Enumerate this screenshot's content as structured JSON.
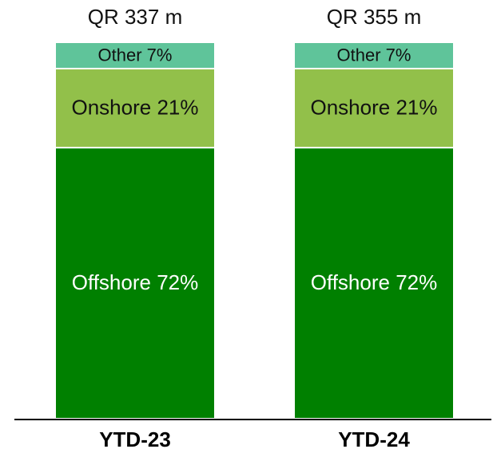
{
  "chart_data": {
    "type": "stacked_bar",
    "categories": [
      "YTD-23",
      "YTD-24"
    ],
    "ylim": [
      0,
      100
    ],
    "totals": {
      "values": [
        337,
        355
      ],
      "value_labels": [
        "QR 337 m",
        "QR 355 m"
      ]
    },
    "series": [
      {
        "name": "Offshore",
        "color": "#008000",
        "label_color": "#ffffff",
        "values": [
          72,
          72
        ],
        "value_labels": [
          "Offshore 72%",
          "Offshore 72%"
        ]
      },
      {
        "name": "Onshore",
        "color": "#92c04a",
        "label_color": "#111111",
        "values": [
          21,
          21
        ],
        "value_labels": [
          "Onshore 21%",
          "Onshore 21%"
        ]
      },
      {
        "name": "Other",
        "color": "#5fc49a",
        "label_color": "#111111",
        "values": [
          7,
          7
        ],
        "value_labels": [
          "Other 7%",
          "Other 7%"
        ]
      }
    ]
  }
}
